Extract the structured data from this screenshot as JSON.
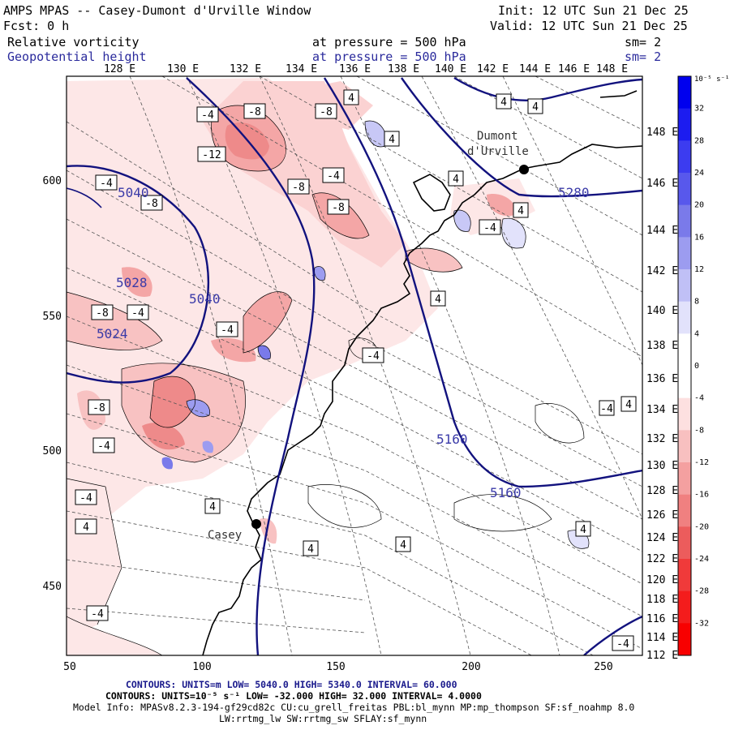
{
  "header": {
    "title": "AMPS MPAS -- Casey-Dumont d'Urville Window",
    "init": "Init: 12 UTC Sun 21 Dec 25",
    "fcst": "Fcst:    0 h",
    "valid": "Valid: 12 UTC Sun 21 Dec 25",
    "field1": {
      "name": "Relative vorticity",
      "level": "at pressure =  500 hPa",
      "sm": "sm= 2"
    },
    "field2": {
      "name": "Geopotential height",
      "level": "at pressure =  500 hPa",
      "sm": "sm= 2"
    }
  },
  "top_longitudes": [
    "128 E",
    "130 E",
    "132 E",
    "134 E",
    "136 E",
    "138 E",
    "140 E",
    "142 E",
    "144 E",
    "146 E",
    "148 E"
  ],
  "right_longitudes": [
    "148 E",
    "146 E",
    "144 E",
    "142 E",
    "140 E",
    "138 E",
    "136 E",
    "134 E",
    "132 E",
    "130 E",
    "128 E",
    "126 E",
    "124 E",
    "122 E",
    "120 E",
    "118 E",
    "116 E",
    "114 E",
    "112 E"
  ],
  "x_ticks": [
    "50",
    "100",
    "150",
    "200",
    "250"
  ],
  "y_ticks": [
    "600",
    "550",
    "500",
    "450"
  ],
  "colorbar": {
    "top_label": "10⁻⁵ s⁻¹",
    "labels": [
      "32",
      "28",
      "24",
      "20",
      "16",
      "12",
      "8",
      "4",
      "0",
      "-4",
      "-8",
      "-12",
      "-16",
      "-20",
      "-24",
      "-28",
      "-32"
    ],
    "colors": [
      "#0000ee",
      "#1c1cf0",
      "#3c3cf0",
      "#5858ec",
      "#7a7aea",
      "#9c9cf0",
      "#c0c0f6",
      "#e2e2fb",
      "#ffffff",
      "#ffffff",
      "#fde0e0",
      "#f8c0c0",
      "#f4a0a0",
      "#f08080",
      "#ec5c5c",
      "#f03a3a",
      "#f41c1c",
      "#f80000"
    ]
  },
  "places": [
    "Dumont",
    "d'Urville",
    "Casey"
  ],
  "height_labels": [
    "5040",
    "5040",
    "5028",
    "5024",
    "5160",
    "5160",
    "5280"
  ],
  "vort_labels": [
    "-4",
    "-8",
    "-8",
    "4",
    "4",
    "4",
    "-12",
    "-8",
    "-4",
    "-4",
    "-8",
    "4",
    "-8",
    "4",
    "-4",
    "-4",
    "-8",
    "-4",
    "4",
    "-4",
    "-8",
    "-4",
    "-4",
    "4",
    "4",
    "4",
    "4",
    "4",
    "-4",
    "-4",
    "4",
    "-4",
    "4"
  ],
  "footer": {
    "line1": "CONTOURS:  UNITS=m  LOW=  5040.0        HIGH=  5340.0        INTERVAL=  60.000",
    "line2": "CONTOURS:  UNITS=10⁻⁵ s⁻¹  LOW= -32.000       HIGH=  32.000       INTERVAL=  4.0000",
    "line3": "Model Info: MPASv8.2.3-194-gf29cd82c CU:cu_grell_freitas PBL:bl_mynn MP:mp_thompson SF:sf_noahmp 8.0",
    "line4": "LW:rrtmg_lw SW:rrtmg_sw SFLAY:sf_mynn"
  }
}
